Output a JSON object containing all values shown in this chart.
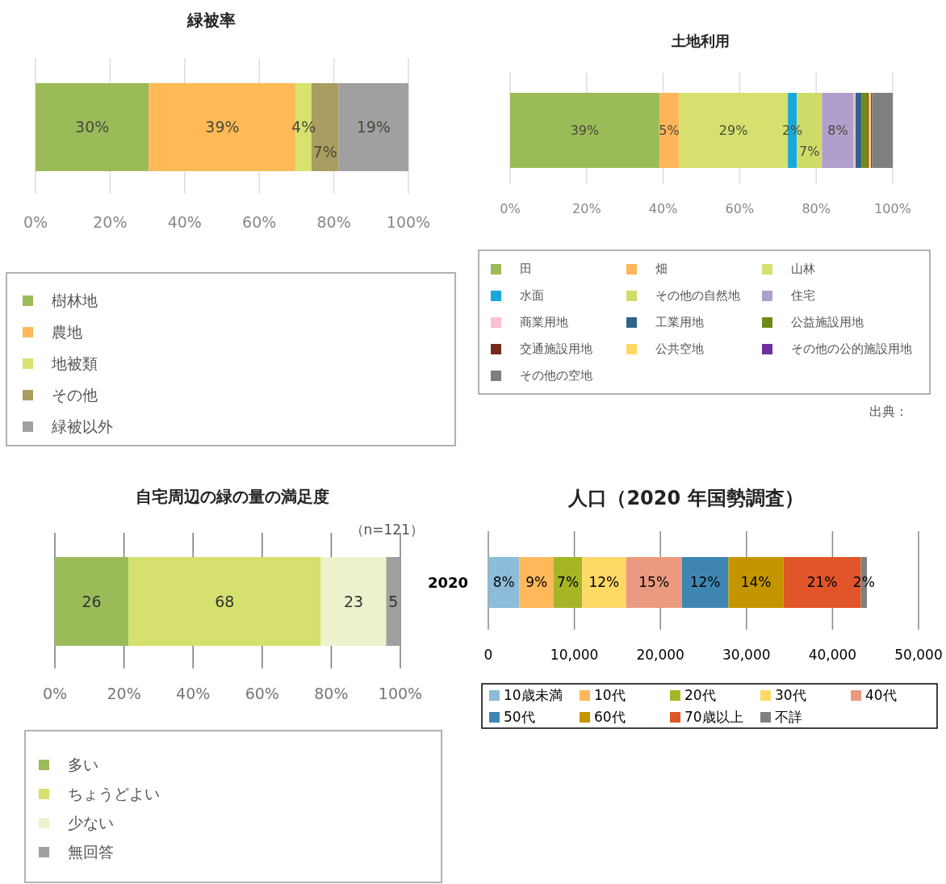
{
  "chart_data": [
    {
      "type": "bar",
      "title": "緑被率",
      "orientation": "horizontal",
      "stacked": true,
      "categories": [
        null
      ],
      "xlim": [
        0,
        100
      ],
      "xticks": [
        {
          "value": 0,
          "label": "0%"
        },
        {
          "value": 20,
          "label": "20%"
        },
        {
          "value": 40,
          "label": "40%"
        },
        {
          "value": 60,
          "label": "60%"
        },
        {
          "value": 80,
          "label": "80%"
        },
        {
          "value": 100,
          "label": "100%"
        }
      ],
      "grid": "x",
      "legend": "bottom",
      "series": [
        {
          "name": "樹林地",
          "color": "#9bbb59",
          "values": [
            30.4
          ],
          "value_labels": [
            "30%"
          ]
        },
        {
          "name": "農地",
          "color": "#ffb957",
          "values": [
            39.4
          ],
          "value_labels": [
            "39%"
          ]
        },
        {
          "name": "地被類",
          "color": "#d7e36e",
          "values": [
            4.2
          ],
          "value_labels": [
            "4%"
          ]
        },
        {
          "name": "その他",
          "color": "#a99d61",
          "values": [
            7.3
          ],
          "value_labels": [
            "7%"
          ]
        },
        {
          "name": "緑被以外",
          "color": "#a0a0a0",
          "values": [
            18.7
          ],
          "value_labels": [
            "19%"
          ]
        }
      ]
    },
    {
      "type": "bar",
      "title": "土地利用",
      "orientation": "horizontal",
      "stacked": true,
      "categories": [
        null
      ],
      "xlim": [
        0,
        100
      ],
      "xticks": [
        {
          "value": 0,
          "label": "0%"
        },
        {
          "value": 20,
          "label": "20%"
        },
        {
          "value": 40,
          "label": "40%"
        },
        {
          "value": 60,
          "label": "60%"
        },
        {
          "value": 80,
          "label": "80%"
        },
        {
          "value": 100,
          "label": "100%"
        }
      ],
      "grid": "x",
      "legend": "bottom",
      "annotations": [
        "出典："
      ],
      "series": [
        {
          "name": "田",
          "color": "#9bbb59",
          "values": [
            39.0
          ],
          "value_labels": [
            "39%"
          ]
        },
        {
          "name": "畑",
          "color": "#ffb55a",
          "values": [
            5.1
          ],
          "value_labels": [
            "5%"
          ]
        },
        {
          "name": "山林",
          "color": "#d5e06e",
          "values": [
            28.5
          ],
          "value_labels": [
            "29%"
          ]
        },
        {
          "name": "水面",
          "color": "#17a9dd",
          "values": [
            2.3
          ],
          "value_labels": [
            "2%"
          ]
        },
        {
          "name": "その他の自然地",
          "color": "#cfdc6a",
          "values": [
            6.6
          ],
          "value_labels": [
            "7%"
          ]
        },
        {
          "name": "住宅",
          "color": "#b09fcc",
          "values": [
            8.3
          ],
          "value_labels": [
            "8%"
          ]
        },
        {
          "name": "商業用地",
          "color": "#f8c0d0",
          "values": [
            0.5
          ],
          "value_labels": [
            null
          ]
        },
        {
          "name": "工業用地",
          "color": "#2e6489",
          "values": [
            1.5
          ],
          "value_labels": [
            null
          ]
        },
        {
          "name": "公益施設用地",
          "color": "#6f8a1a",
          "values": [
            1.6
          ],
          "value_labels": [
            null
          ]
        },
        {
          "name": "交通施設用地",
          "color": "#7a2a1a",
          "values": [
            0.3
          ],
          "value_labels": [
            null
          ]
        },
        {
          "name": "公共空地",
          "color": "#ffd966",
          "values": [
            0.6
          ],
          "value_labels": [
            null
          ]
        },
        {
          "name": "その他の公的施設用地",
          "color": "#7030a0",
          "values": [
            0.3
          ],
          "value_labels": [
            null
          ]
        },
        {
          "name": "その他の空地",
          "color": "#7f7f7f",
          "values": [
            5.4
          ],
          "value_labels": [
            null
          ]
        }
      ]
    },
    {
      "type": "bar",
      "title": "自宅周辺の緑の量の満足度",
      "orientation": "horizontal",
      "stacked": true,
      "categories": [
        null
      ],
      "xlim": [
        0,
        100
      ],
      "xticks": [
        {
          "value": 0,
          "label": "0%"
        },
        {
          "value": 20,
          "label": "20%"
        },
        {
          "value": 40,
          "label": "40%"
        },
        {
          "value": 60,
          "label": "60%"
        },
        {
          "value": 80,
          "label": "80%"
        },
        {
          "value": 100,
          "label": "100%"
        }
      ],
      "grid": "x",
      "legend": "bottom",
      "annotations": [
        "（n=121）",
        "26",
        "68",
        "23",
        "5"
      ],
      "series": [
        {
          "name": "多い",
          "color": "#9bbb59",
          "values": [
            21.3
          ]
        },
        {
          "name": "ちょうどよい",
          "color": "#d5e06e",
          "values": [
            55.7
          ]
        },
        {
          "name": "少ない",
          "color": "#eef2cc",
          "values": [
            18.9
          ]
        },
        {
          "name": "無回答",
          "color": "#a0a0a0",
          "values": [
            4.1
          ]
        }
      ]
    },
    {
      "type": "bar",
      "title": "人口（2020 年国勢調査）",
      "orientation": "horizontal",
      "stacked": true,
      "categories": [
        "2020"
      ],
      "xlim": [
        0,
        50000
      ],
      "xticks": [
        0,
        {
          "value": 10000,
          "label": "10,000"
        },
        {
          "value": 20000,
          "label": "20,000"
        },
        {
          "value": 30000,
          "label": "30,000"
        },
        {
          "value": 40000,
          "label": "40,000"
        },
        {
          "value": 50000,
          "label": "50,000"
        }
      ],
      "grid": "x",
      "legend": "bottom",
      "annotations": [
        "8%",
        "9%",
        "7%",
        "12%",
        "15%",
        "12%",
        "14%",
        "21%",
        "2%"
      ],
      "series": [
        {
          "name": "10歳未満",
          "color": "#8cbcd9",
          "values": [
            3600
          ]
        },
        {
          "name": "10代",
          "color": "#ffb85a",
          "values": [
            4000
          ]
        },
        {
          "name": "20代",
          "color": "#a5b526",
          "values": [
            3300
          ]
        },
        {
          "name": "30代",
          "color": "#ffd966",
          "values": [
            5100
          ]
        },
        {
          "name": "40代",
          "color": "#ea9a80",
          "values": [
            6500
          ]
        },
        {
          "name": "50代",
          "color": "#3f87b2",
          "values": [
            5400
          ]
        },
        {
          "name": "60代",
          "color": "#c49500",
          "values": [
            6400
          ]
        },
        {
          "name": "70歳以上",
          "color": "#e05529",
          "values": [
            9000
          ]
        },
        {
          "name": "不詳",
          "color": "#808080",
          "values": [
            700
          ]
        }
      ]
    }
  ]
}
